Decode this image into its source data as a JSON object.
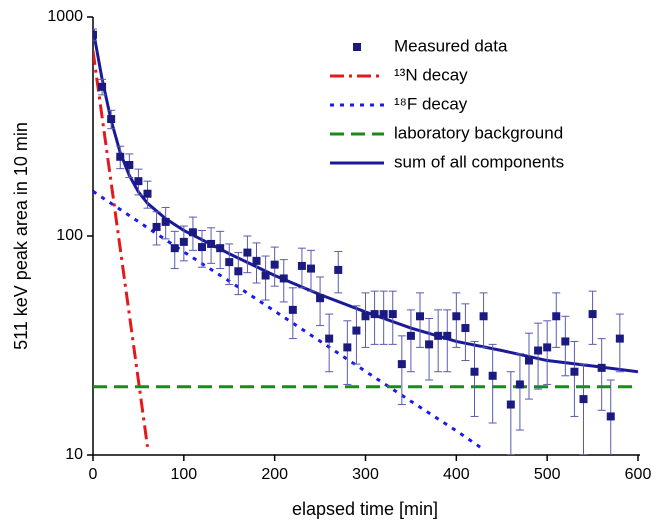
{
  "chart_data": {
    "type": "scatter",
    "xlabel": "elapsed time [min]",
    "ylabel": "511 keV peak area in 10 min",
    "xlim": [
      0,
      600
    ],
    "ylim": [
      10,
      1000
    ],
    "yscale": "log",
    "xticks": [
      0,
      100,
      200,
      300,
      400,
      500,
      600
    ],
    "yticks": [
      10,
      100,
      1000
    ],
    "legend": "upper right",
    "series": [
      {
        "name": "Measured data",
        "type": "scatter",
        "color": "#1a1a80",
        "x": [
          0,
          10,
          20,
          30,
          40,
          50,
          60,
          70,
          80,
          90,
          100,
          110,
          120,
          130,
          140,
          150,
          160,
          170,
          180,
          190,
          200,
          210,
          220,
          230,
          240,
          250,
          260,
          270,
          280,
          290,
          300,
          310,
          320,
          330,
          340,
          350,
          360,
          370,
          380,
          390,
          400,
          410,
          420,
          430,
          440,
          460,
          470,
          480,
          490,
          500,
          510,
          520,
          530,
          540,
          550,
          560,
          570,
          580
        ],
        "values": [
          830,
          480,
          342,
          230,
          211,
          178,
          156,
          110,
          116,
          88,
          94,
          104,
          89,
          92,
          88,
          76,
          69,
          84,
          77,
          66,
          74,
          64,
          46,
          73,
          71,
          52,
          34,
          70,
          31,
          37,
          43,
          44,
          44,
          44,
          26,
          35,
          43,
          32,
          35,
          35,
          43,
          38,
          24,
          43,
          23,
          17,
          21,
          27,
          30,
          31,
          43,
          33,
          24,
          18,
          44,
          25,
          15,
          34
        ],
        "errors": [
          52,
          39,
          33,
          27,
          26,
          24,
          22,
          19,
          19,
          17,
          17,
          18,
          17,
          17,
          17,
          16,
          15,
          16,
          16,
          15,
          15,
          14,
          12,
          15,
          15,
          13,
          10,
          15,
          10,
          11,
          12,
          12,
          12,
          12,
          9,
          11,
          12,
          10,
          11,
          11,
          12,
          11,
          9,
          12,
          9,
          7,
          8,
          9,
          10,
          10,
          12,
          10,
          9,
          8,
          12,
          9,
          7,
          10
        ]
      },
      {
        "name": "¹³N decay",
        "type": "line",
        "style": "dashdot",
        "color": "#e31a1c",
        "x": [
          0,
          10,
          20,
          30,
          40,
          50,
          60
        ],
        "values": [
          700,
          350,
          175,
          87.5,
          43.8,
          21.9,
          10.9
        ]
      },
      {
        "name": "¹⁸F decay",
        "type": "line",
        "style": "dot",
        "color": "#1a1aee",
        "x": [
          0,
          50,
          100,
          150,
          200,
          250,
          300,
          350,
          400,
          430
        ],
        "values": [
          160,
          116.3,
          84.6,
          62.2,
          45.4,
          33.1,
          24.1,
          17.6,
          12.9,
          10.6
        ]
      },
      {
        "name": "laboratory background",
        "type": "line",
        "style": "dash",
        "color": "#1a8a1a",
        "x": [
          0,
          600
        ],
        "values": [
          20.5,
          20.5
        ]
      },
      {
        "name": "sum of all components",
        "type": "line",
        "style": "solid",
        "color": "#1a1a99",
        "x": [
          0,
          10,
          20,
          30,
          40,
          50,
          60,
          80,
          100,
          150,
          200,
          250,
          300,
          350,
          400,
          450,
          500,
          550,
          600
        ],
        "values": [
          880,
          521,
          337,
          240,
          189,
          159,
          141,
          120,
          106,
          83,
          66,
          54,
          45,
          38,
          33,
          30,
          27,
          25.5,
          24
        ]
      }
    ]
  }
}
